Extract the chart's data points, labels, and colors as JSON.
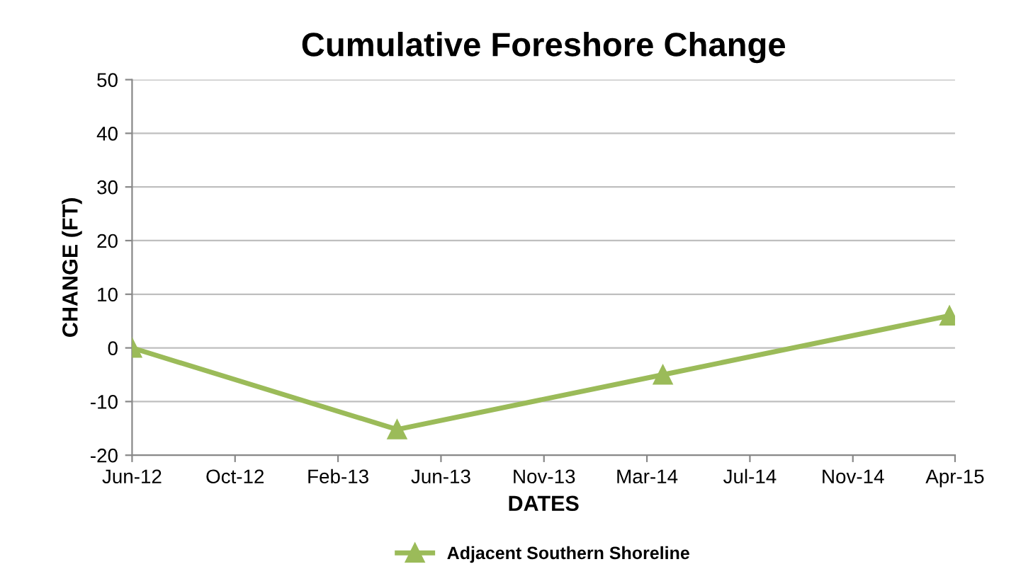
{
  "chart_data": {
    "type": "line",
    "title": "Cumulative Foreshore Change",
    "xlabel": "DATES",
    "ylabel": "CHANGE (FT)",
    "x": [
      "2012-06-05",
      "2013-05-03",
      "2014-04-01",
      "2015-03-26"
    ],
    "series": [
      {
        "name": "Adjacent Southern Shoreline",
        "color": "#9bbb59",
        "values": [
          0,
          -15.2,
          -5,
          6
        ]
      }
    ],
    "xlim": [
      "2012-06-05",
      "2015-04-02"
    ],
    "xticks": [
      {
        "value": "2012-06-05",
        "label": "Jun-12"
      },
      {
        "value": "2012-10-12",
        "label": "Oct-12"
      },
      {
        "value": "2013-02-18",
        "label": "Feb-13"
      },
      {
        "value": "2013-06-27",
        "label": "Jun-13"
      },
      {
        "value": "2013-11-03",
        "label": "Nov-13"
      },
      {
        "value": "2014-03-12",
        "label": "Mar-14"
      },
      {
        "value": "2014-07-19",
        "label": "Jul-14"
      },
      {
        "value": "2014-11-25",
        "label": "Nov-14"
      },
      {
        "value": "2015-04-02",
        "label": "Apr-15"
      }
    ],
    "ylim": [
      -20,
      50
    ],
    "yticks": [
      -20,
      -10,
      0,
      10,
      20,
      30,
      40,
      50
    ],
    "grid": "y",
    "legend": "bottom",
    "marker": "triangle",
    "line_style": "solid"
  }
}
